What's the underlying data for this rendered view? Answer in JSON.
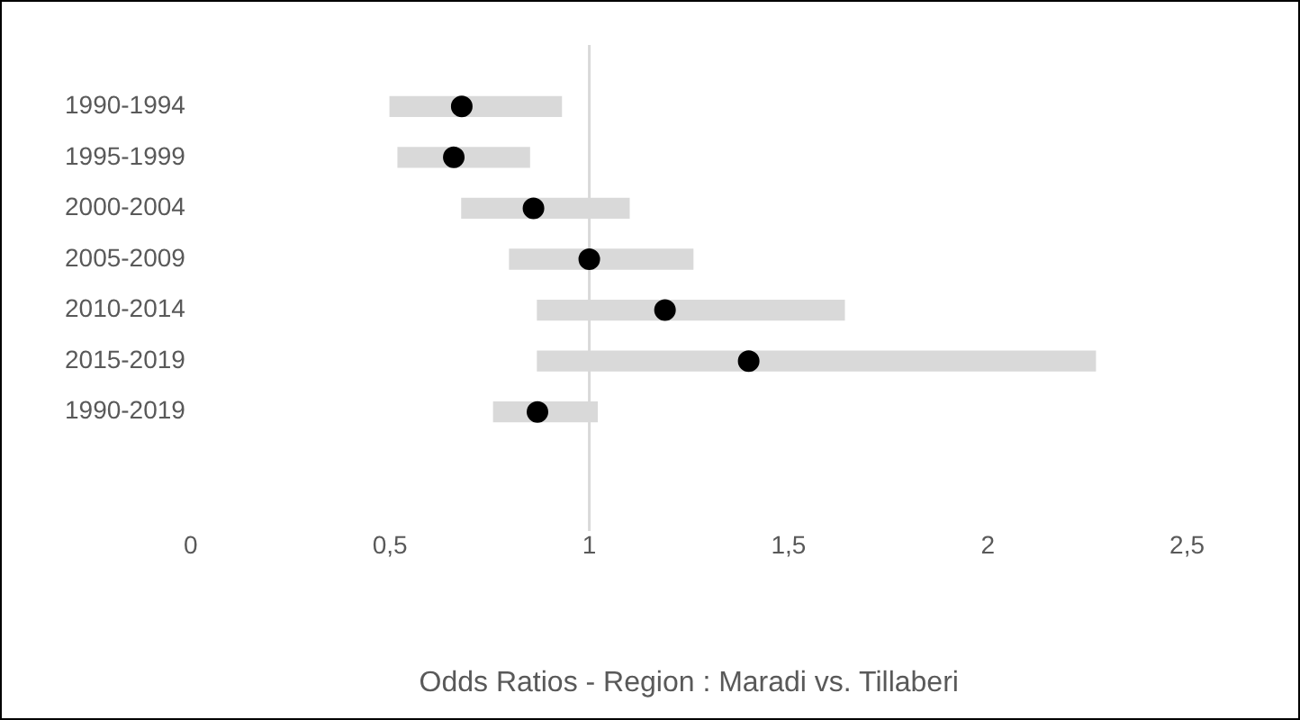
{
  "chart_data": {
    "type": "bar",
    "orientation": "horizontal",
    "xlabel": "Odds Ratios - Region : Maradi vs. Tillaberi",
    "categories": [
      "1990-1994",
      "1995-1999",
      "2000-2004",
      "2005-2009",
      "2010-2014",
      "2015-2019",
      "1990-2019"
    ],
    "series": [
      {
        "color": "#d9d9d9",
        "base": [
          0.5,
          0.52,
          0.68,
          0.8,
          0.87,
          0.87,
          0.76
        ],
        "values": [
          0.43,
          0.33,
          0.42,
          0.46,
          0.77,
          1.4,
          0.26
        ]
      },
      {
        "type": "scatter",
        "color": "#000000",
        "x": [
          "1990-1994",
          "1995-1999",
          "2000-2004",
          "2005-2009",
          "2010-2014",
          "2015-2019",
          "1990-2019"
        ],
        "values": [
          0.68,
          0.66,
          0.86,
          1.0,
          1.19,
          1.4,
          0.87
        ]
      }
    ],
    "xlim": [
      0,
      2.5
    ],
    "xticks": [
      0,
      {
        "value": 0.5,
        "label": "0,5"
      },
      1,
      {
        "value": 1.5,
        "label": "1,5"
      },
      2,
      {
        "value": 2.5,
        "label": "2,5"
      }
    ],
    "ref_lines": [
      {
        "axis": "x",
        "value": 1,
        "color": "#d9d9d9"
      }
    ],
    "grid": false,
    "legend": false,
    "marker": "circle"
  }
}
